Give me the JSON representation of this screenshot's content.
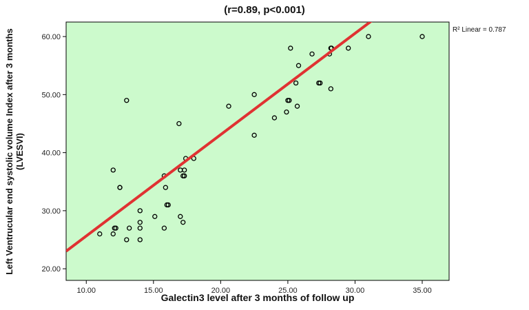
{
  "chart_data": {
    "type": "scatter",
    "title": "(r=0.89, p<0.001)",
    "xlabel": "Galectin3 level after 3 months of follow up",
    "ylabel_line1": "Left Ventrucular end systolic volume Index after 3 months",
    "ylabel_line2": "(LVESVI)",
    "xlim": [
      8.5,
      37
    ],
    "ylim": [
      18,
      62.5
    ],
    "xticks": [
      10,
      15,
      20,
      25,
      30,
      35
    ],
    "xtick_labels": [
      "10.00",
      "15.00",
      "20.00",
      "25.00",
      "30.00",
      "35.00"
    ],
    "yticks": [
      20,
      30,
      40,
      50,
      60
    ],
    "ytick_labels": [
      "20.00",
      "30.00",
      "40.00",
      "50.00",
      "60.00"
    ],
    "grid": false,
    "background_color": "#ccfacc",
    "point_color": "#000000",
    "fit_line": {
      "type": "linear",
      "slope": 1.745,
      "intercept": 8.2,
      "color": "#e03232"
    },
    "r2_label": "R² Linear = 0.787",
    "points": [
      {
        "x": 11.0,
        "y": 26
      },
      {
        "x": 12.0,
        "y": 26
      },
      {
        "x": 12.1,
        "y": 27
      },
      {
        "x": 12.2,
        "y": 27
      },
      {
        "x": 12.0,
        "y": 37
      },
      {
        "x": 12.5,
        "y": 34
      },
      {
        "x": 12.5,
        "y": 34
      },
      {
        "x": 13.0,
        "y": 49
      },
      {
        "x": 13.0,
        "y": 25
      },
      {
        "x": 13.2,
        "y": 27
      },
      {
        "x": 14.0,
        "y": 25
      },
      {
        "x": 14.0,
        "y": 27
      },
      {
        "x": 14.0,
        "y": 28
      },
      {
        "x": 14.0,
        "y": 30
      },
      {
        "x": 15.1,
        "y": 29
      },
      {
        "x": 15.8,
        "y": 27
      },
      {
        "x": 15.8,
        "y": 36
      },
      {
        "x": 15.9,
        "y": 34
      },
      {
        "x": 16.0,
        "y": 31
      },
      {
        "x": 16.1,
        "y": 31
      },
      {
        "x": 16.9,
        "y": 45
      },
      {
        "x": 17.0,
        "y": 29
      },
      {
        "x": 17.0,
        "y": 37
      },
      {
        "x": 17.2,
        "y": 28
      },
      {
        "x": 17.2,
        "y": 36
      },
      {
        "x": 17.3,
        "y": 36
      },
      {
        "x": 17.3,
        "y": 37
      },
      {
        "x": 17.4,
        "y": 39
      },
      {
        "x": 18.0,
        "y": 39
      },
      {
        "x": 20.6,
        "y": 48
      },
      {
        "x": 22.5,
        "y": 43
      },
      {
        "x": 22.5,
        "y": 50
      },
      {
        "x": 24.0,
        "y": 46
      },
      {
        "x": 24.9,
        "y": 47
      },
      {
        "x": 25.0,
        "y": 49
      },
      {
        "x": 25.1,
        "y": 49
      },
      {
        "x": 25.2,
        "y": 58
      },
      {
        "x": 25.6,
        "y": 52
      },
      {
        "x": 25.7,
        "y": 48
      },
      {
        "x": 25.8,
        "y": 55
      },
      {
        "x": 26.8,
        "y": 57
      },
      {
        "x": 27.3,
        "y": 52
      },
      {
        "x": 27.4,
        "y": 52
      },
      {
        "x": 28.1,
        "y": 57
      },
      {
        "x": 28.2,
        "y": 58
      },
      {
        "x": 28.25,
        "y": 58
      },
      {
        "x": 28.2,
        "y": 51
      },
      {
        "x": 29.5,
        "y": 58
      },
      {
        "x": 31.0,
        "y": 60
      },
      {
        "x": 35.0,
        "y": 60
      }
    ]
  }
}
